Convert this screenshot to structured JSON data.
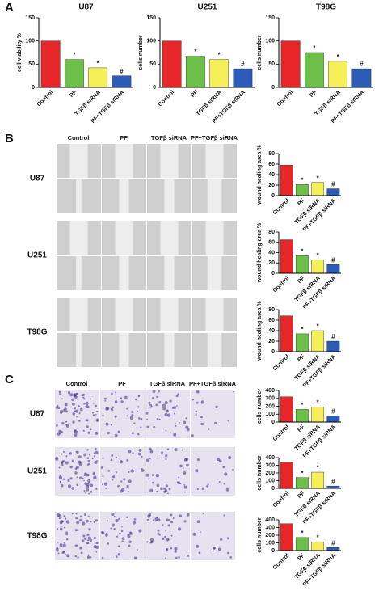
{
  "panel_labels": [
    "A",
    "B",
    "C"
  ],
  "wound_images": {
    "columns": [
      "Control",
      "PF",
      "TGFβ siRNA",
      "PF+TGFβ siRNA"
    ],
    "rows": [
      "U87",
      "U251",
      "T98G"
    ]
  },
  "invasion_images": {
    "columns": [
      "Control",
      "PF",
      "TGFβ siRNA",
      "PF+TGFβ siRNA"
    ],
    "rows": [
      "U87",
      "U251",
      "T98G"
    ]
  },
  "chart_data": [
    {
      "type": "bar",
      "title": "U87",
      "y_label": "cell viability %",
      "categories": [
        "Control",
        "PF",
        "TGFβ siRNA",
        "PF+TGFβ siRNA"
      ],
      "values": [
        100,
        60,
        42,
        25
      ],
      "colors": [
        "#e8262a",
        "#6cc04a",
        "#f5ef5a",
        "#2a5cb8"
      ],
      "annotations": [
        null,
        "*",
        "*",
        "#"
      ],
      "ylim": [
        0,
        150
      ],
      "yticks": [
        0,
        50,
        100,
        150
      ]
    },
    {
      "type": "bar",
      "title": "U251",
      "y_label": "cells number",
      "categories": [
        "Control",
        "PF",
        "TGFβ siRNA",
        "PF+TGFβ siRNA"
      ],
      "values": [
        100,
        67,
        60,
        40
      ],
      "colors": [
        "#e8262a",
        "#6cc04a",
        "#f5ef5a",
        "#2a5cb8"
      ],
      "annotations": [
        null,
        "*",
        "*",
        "#"
      ],
      "ylim": [
        0,
        150
      ],
      "yticks": [
        0,
        50,
        100,
        150
      ]
    },
    {
      "type": "bar",
      "title": "T98G",
      "y_label": "cells number",
      "categories": [
        "Control",
        "PF",
        "TGFβ siRNA",
        "PF+TGFβ siRNA"
      ],
      "values": [
        100,
        75,
        56,
        40
      ],
      "colors": [
        "#e8262a",
        "#6cc04a",
        "#f5ef5a",
        "#2a5cb8"
      ],
      "annotations": [
        null,
        "*",
        "*",
        "#"
      ],
      "ylim": [
        0,
        150
      ],
      "yticks": [
        0,
        50,
        100,
        150
      ]
    },
    {
      "type": "bar",
      "y_label": "wound healing area %",
      "categories": [
        "Control",
        "PF",
        "TGFβ siRNA",
        "PF+TGFβ siRNA"
      ],
      "values": [
        58,
        21,
        25,
        13
      ],
      "colors": [
        "#e8262a",
        "#6cc04a",
        "#f5ef5a",
        "#2a5cb8"
      ],
      "annotations": [
        null,
        "*",
        "*",
        "#"
      ],
      "ylim": [
        0,
        80
      ],
      "yticks": [
        0,
        20,
        40,
        60,
        80
      ]
    },
    {
      "type": "bar",
      "y_label": "wound healing area %",
      "categories": [
        "Control",
        "PF",
        "TGFβ siRNA",
        "PF+TGFβ siRNA"
      ],
      "values": [
        65,
        34,
        26,
        17
      ],
      "colors": [
        "#e8262a",
        "#6cc04a",
        "#f5ef5a",
        "#2a5cb8"
      ],
      "annotations": [
        null,
        "*",
        "*",
        "#"
      ],
      "ylim": [
        0,
        80
      ],
      "yticks": [
        0,
        20,
        40,
        60,
        80
      ]
    },
    {
      "type": "bar",
      "y_label": "wound healing area %",
      "categories": [
        "Control",
        "PF",
        "TGFβ siRNA",
        "PF+TGFβ siRNA"
      ],
      "values": [
        68,
        34,
        40,
        20
      ],
      "colors": [
        "#e8262a",
        "#6cc04a",
        "#f5ef5a",
        "#2a5cb8"
      ],
      "annotations": [
        null,
        "*",
        "*",
        "#"
      ],
      "ylim": [
        0,
        80
      ],
      "yticks": [
        0,
        20,
        40,
        60,
        80
      ]
    },
    {
      "type": "bar",
      "y_label": "cells number",
      "categories": [
        "Control",
        "PF",
        "TGFβ siRNA",
        "PF+TGFβ siRNA"
      ],
      "values": [
        320,
        160,
        190,
        80
      ],
      "colors": [
        "#e8262a",
        "#6cc04a",
        "#f5ef5a",
        "#2a5cb8"
      ],
      "annotations": [
        null,
        "*",
        "*",
        "#"
      ],
      "ylim": [
        0,
        400
      ],
      "yticks": [
        0,
        100,
        200,
        300,
        400
      ]
    },
    {
      "type": "bar",
      "y_label": "cells number",
      "categories": [
        "Control",
        "PF",
        "TGFβ siRNA",
        "PF+TGFβ siRNA"
      ],
      "values": [
        340,
        140,
        210,
        30
      ],
      "colors": [
        "#e8262a",
        "#6cc04a",
        "#f5ef5a",
        "#2a5cb8"
      ],
      "annotations": [
        null,
        "*",
        "*",
        "#"
      ],
      "ylim": [
        0,
        400
      ],
      "yticks": [
        0,
        100,
        200,
        300,
        400
      ]
    },
    {
      "type": "bar",
      "y_label": "cells number",
      "categories": [
        "Control",
        "PF",
        "TGFβ siRNA",
        "PF+TGFβ siRNA"
      ],
      "values": [
        350,
        170,
        110,
        40
      ],
      "colors": [
        "#e8262a",
        "#6cc04a",
        "#f5ef5a",
        "#2a5cb8"
      ],
      "annotations": [
        null,
        "*",
        "*",
        "#"
      ],
      "ylim": [
        0,
        400
      ],
      "yticks": [
        0,
        100,
        200,
        300,
        400
      ]
    }
  ]
}
